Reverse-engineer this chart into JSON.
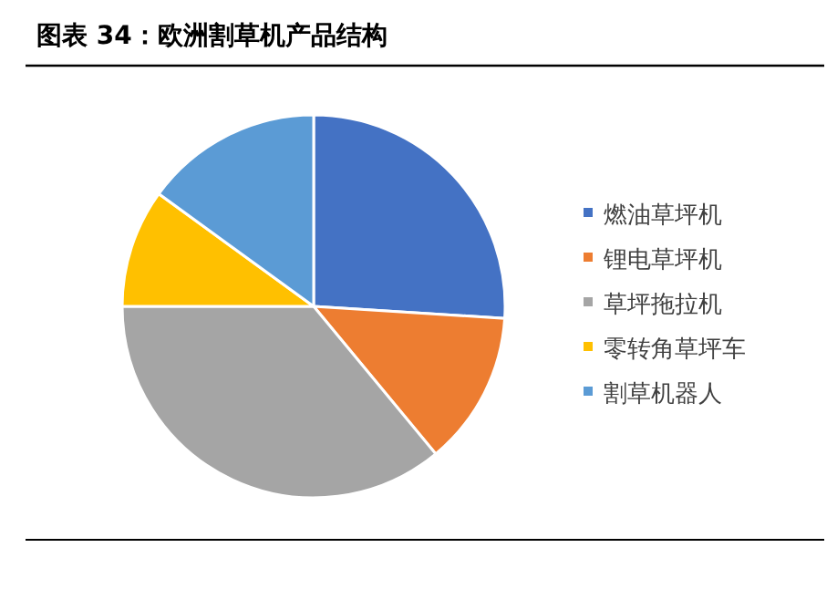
{
  "chart_data": {
    "type": "pie",
    "title": "图表 34：欧洲割草机产品结构",
    "categories": [
      "燃油草坪机",
      "锂电草坪机",
      "草坪拖拉机",
      "零转角草坪车",
      "割草机器人"
    ],
    "values": [
      26,
      13,
      36,
      10,
      15
    ],
    "colors": [
      "#4472c4",
      "#ed7d31",
      "#a5a5a5",
      "#ffc000",
      "#5b9bd5"
    ],
    "legend": "right"
  }
}
